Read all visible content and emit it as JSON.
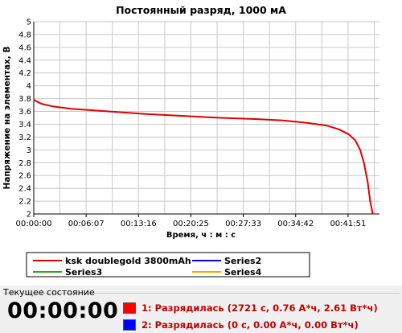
{
  "chart_data": {
    "type": "line",
    "title": "Постоянный разряд, 1000 мА",
    "xlabel": "Время, ч : м : с",
    "ylabel": "Напряжение на элементах, В",
    "x_tick_labels": [
      "00:00:00",
      "00:06:07",
      "00:13:16",
      "00:20:25",
      "00:27:33",
      "00:34:42",
      "00:41:51"
    ],
    "xlim_seconds": [
      0,
      2775
    ],
    "ylim": [
      2,
      5
    ],
    "y_ticks": [
      "2",
      "2.2",
      "2.4",
      "2.6",
      "2.8",
      "3",
      "3.2",
      "3.4",
      "3.6",
      "3.8",
      "4",
      "4.2",
      "4.4",
      "4.6",
      "4.8",
      "5"
    ],
    "grid": true,
    "legend_position": "bottom",
    "series": [
      {
        "name": "ksk doublegold 3800mAh",
        "color": "#e00000",
        "points": [
          [
            0,
            3.78
          ],
          [
            60,
            3.72
          ],
          [
            150,
            3.68
          ],
          [
            300,
            3.64
          ],
          [
            600,
            3.6
          ],
          [
            900,
            3.56
          ],
          [
            1200,
            3.53
          ],
          [
            1500,
            3.5
          ],
          [
            1800,
            3.48
          ],
          [
            2000,
            3.46
          ],
          [
            2200,
            3.42
          ],
          [
            2350,
            3.38
          ],
          [
            2450,
            3.32
          ],
          [
            2530,
            3.24
          ],
          [
            2580,
            3.15
          ],
          [
            2620,
            3.0
          ],
          [
            2650,
            2.8
          ],
          [
            2680,
            2.5
          ],
          [
            2700,
            2.2
          ],
          [
            2721,
            2.0
          ]
        ]
      },
      {
        "name": "Series2",
        "color": "#0000ff",
        "points": []
      },
      {
        "name": "Series3",
        "color": "#22aa22",
        "points": []
      },
      {
        "name": "Series4",
        "color": "#ffa500",
        "points": []
      }
    ]
  },
  "status": {
    "title": "Текущее состояние",
    "clock": "00:00:00",
    "rows": [
      {
        "text": "1: Разрядилась (2721 с, 0.76 А*ч, 2.61 Вт*ч)",
        "color": "#ff0000",
        "text_color": "#c00000"
      },
      {
        "text": "2: Разрядилась (0 с, 0.00 А*ч, 0.00 Вт*ч)",
        "color": "#0000ff",
        "text_color": "#c00000"
      }
    ]
  }
}
